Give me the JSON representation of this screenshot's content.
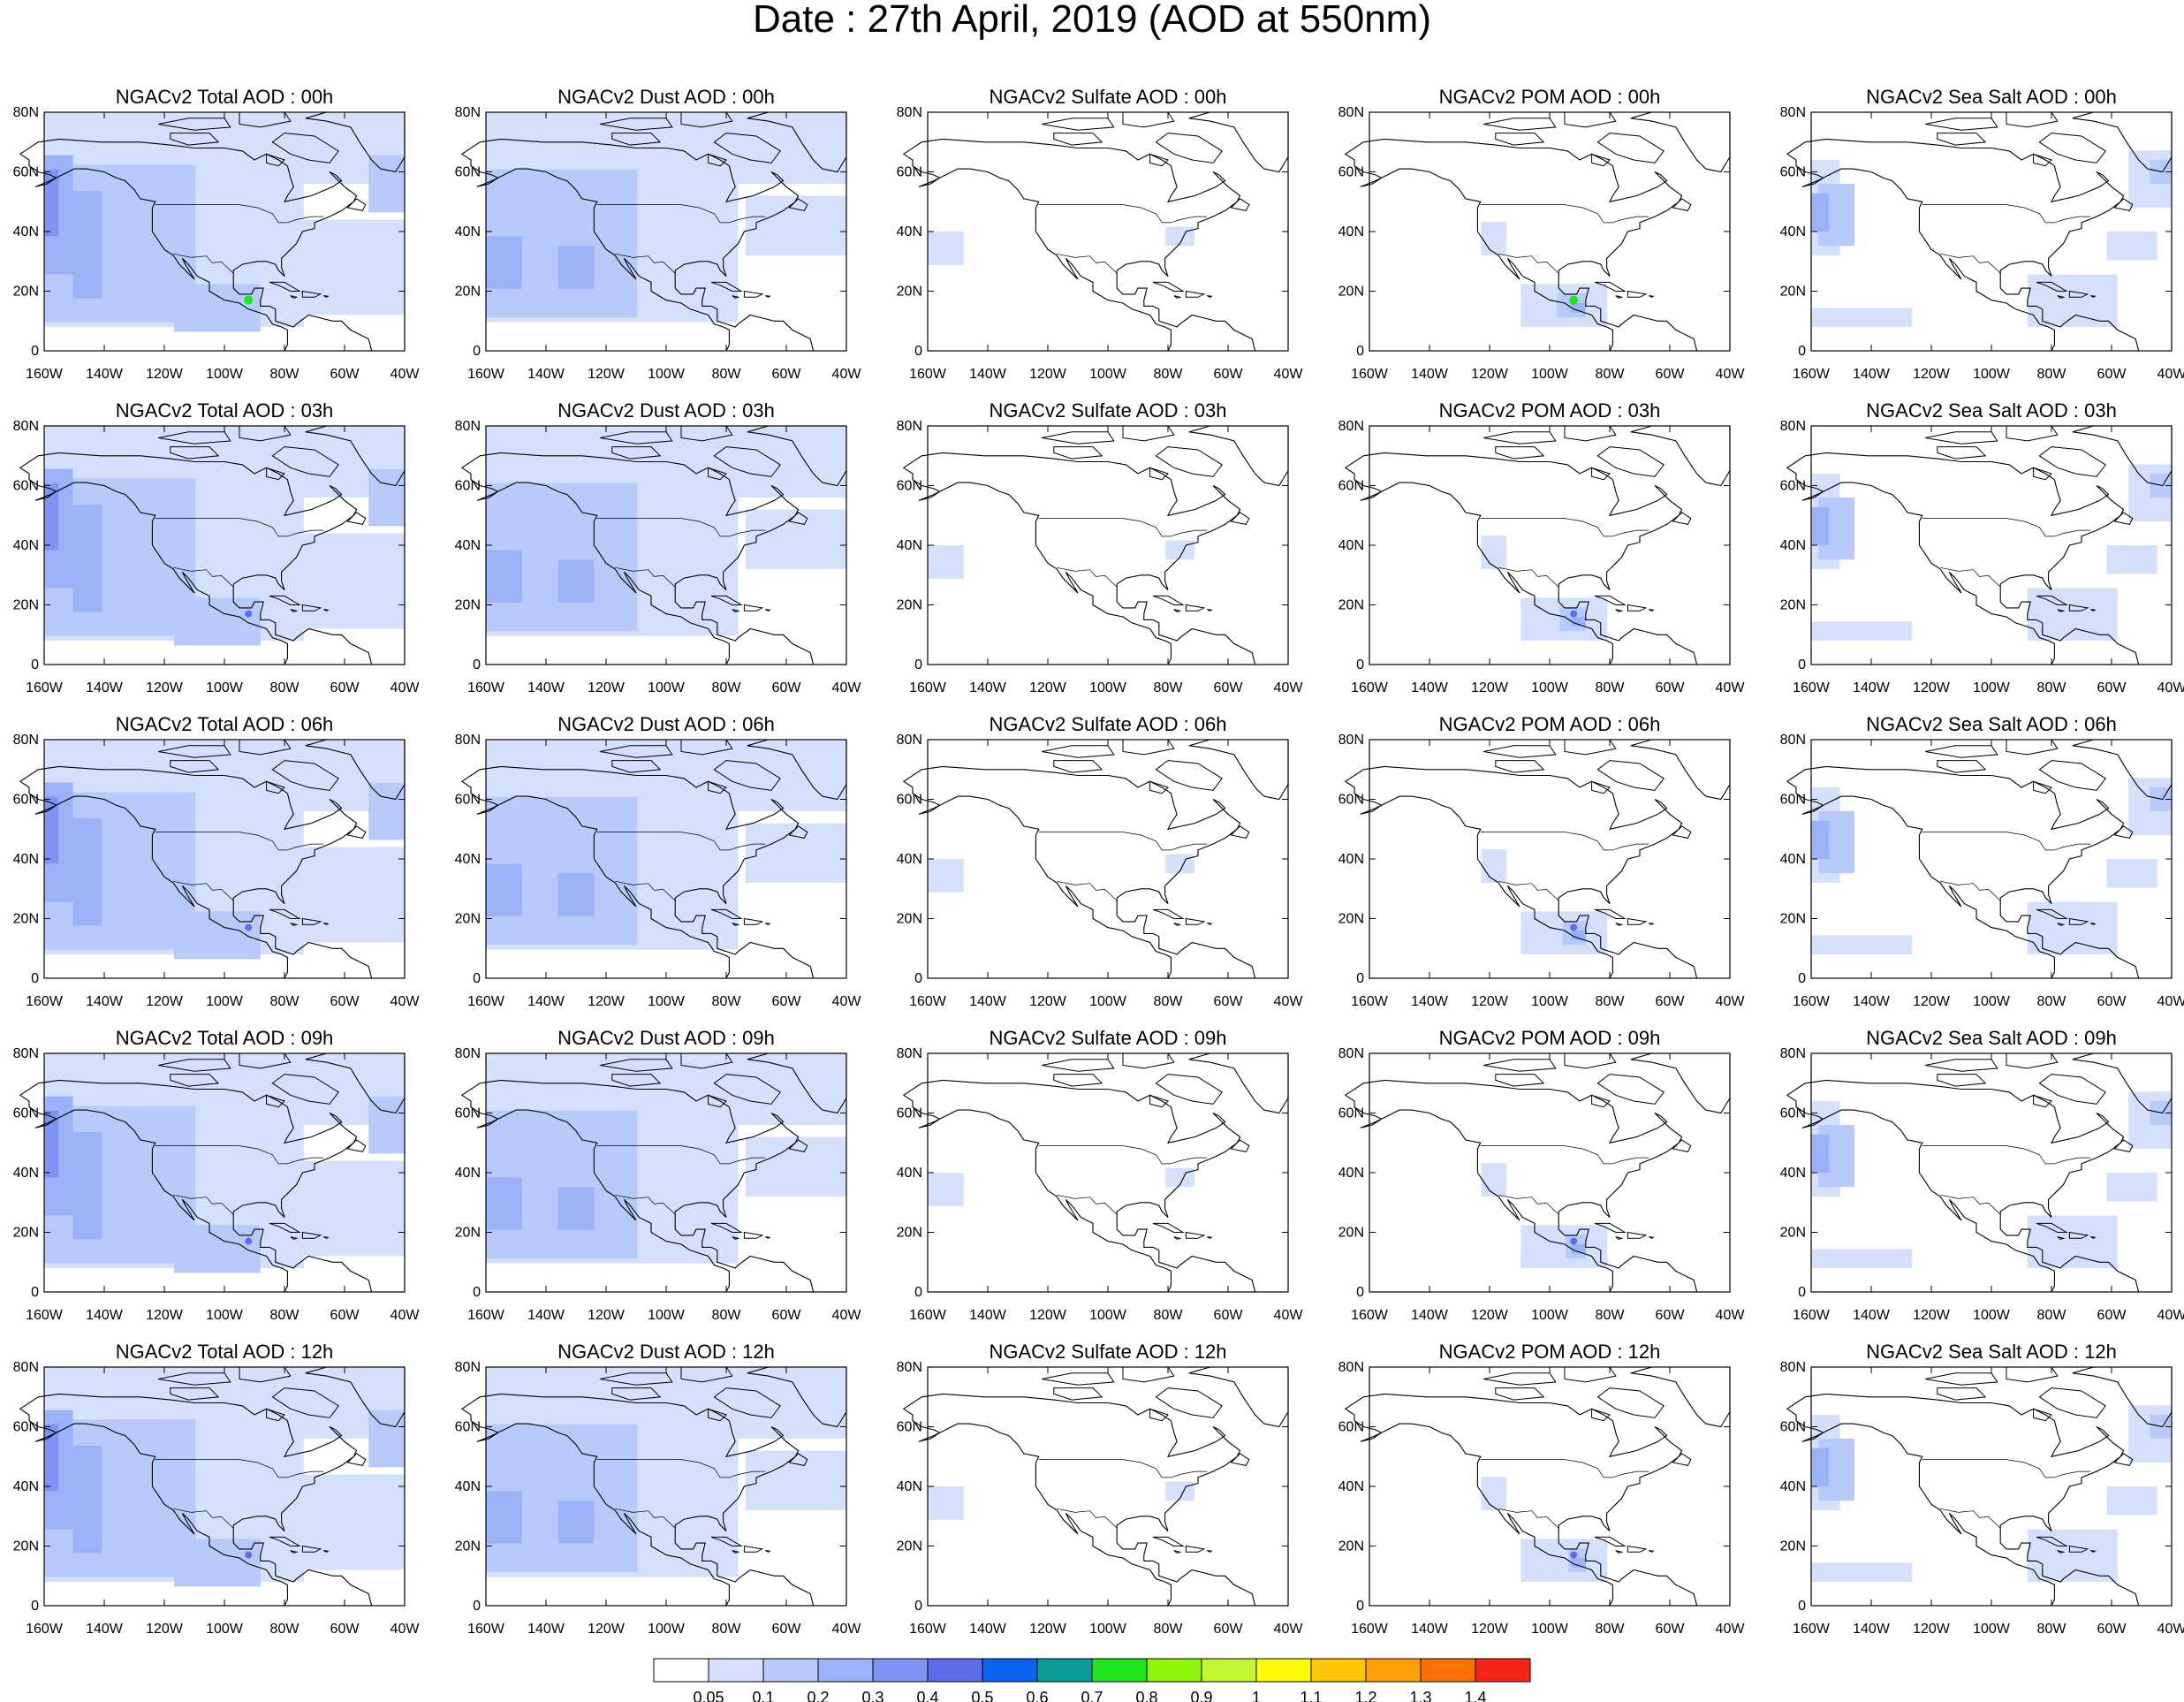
{
  "title": "Date : 27th April, 2019 (AOD at 550nm)",
  "y_ticks": [
    "80N",
    "60N",
    "40N",
    "20N",
    "0"
  ],
  "x_ticks": [
    "160W",
    "140W",
    "120W",
    "100W",
    "80W",
    "60W",
    "40W"
  ],
  "colors": {
    "land_outline": "#000000",
    "levels": [
      "#ffffff",
      "#d4e0fc",
      "#b8cafb",
      "#9cb2f8",
      "#7f94f2",
      "#5d6ce8",
      "#0b63f0",
      "#0a9c96",
      "#1fe51d",
      "#8ef50a",
      "#c3f533",
      "#fffb04",
      "#ffc400",
      "#ffa000",
      "#ff7000",
      "#f8261a"
    ]
  },
  "rows": [
    [
      "NGACv2 Total AOD : 00h",
      "NGACv2 Dust AOD : 00h",
      "NGACv2 Sulfate AOD : 00h",
      "NGACv2 POM AOD : 00h",
      "NGACv2 Sea Salt AOD : 00h"
    ],
    [
      "NGACv2 Total AOD : 03h",
      "NGACv2 Dust AOD : 03h",
      "NGACv2 Sulfate AOD : 03h",
      "NGACv2 POM AOD : 03h",
      "NGACv2 Sea Salt AOD : 03h"
    ],
    [
      "NGACv2 Total AOD : 06h",
      "NGACv2 Dust AOD : 06h",
      "NGACv2 Sulfate AOD : 06h",
      "NGACv2 POM AOD : 06h",
      "NGACv2 Sea Salt AOD : 06h"
    ],
    [
      "NGACv2 Total AOD : 09h",
      "NGACv2 Dust AOD : 09h",
      "NGACv2 Sulfate AOD : 09h",
      "NGACv2 POM AOD : 09h",
      "NGACv2 Sea Salt  AOD : 09h"
    ],
    [
      "NGACv2 Total AOD  : 12h",
      "NGACv2 Dust AOD : 12h",
      "NGACv2 Sulfate AOD : 12h",
      "NGACv2 POM  AOD : 12h",
      "NGACv2 Sea Salt  AOD : 12h"
    ]
  ],
  "colorbar": {
    "labels": [
      "0.05",
      "0.1",
      "0.2",
      "0.3",
      "0.4",
      "0.5",
      "0.6",
      "0.7",
      "0.8",
      "0.9",
      "1",
      "1.1",
      "1.2",
      "1.3",
      "1.4"
    ]
  }
}
